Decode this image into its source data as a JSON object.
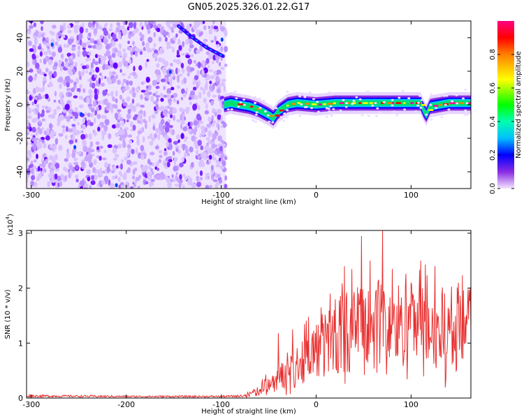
{
  "title": "GN05.2025.326.01.22.G17",
  "chart_data": [
    {
      "type": "heatmap",
      "xlabel": "Height of straight line (km)",
      "ylabel": "Frequency (Hz)",
      "xlim": [
        -305,
        163
      ],
      "ylim": [
        -50,
        50
      ],
      "xticks": [
        -300,
        -200,
        -100,
        0,
        100
      ],
      "yticks": [
        -40,
        -20,
        0,
        20,
        40
      ],
      "colorbar": {
        "label": "Normalized spectral amplitude",
        "range": [
          0,
          1
        ],
        "ticks": [
          "0.0",
          "0.2",
          "0.4",
          "0.6",
          "0.8"
        ],
        "colormap": [
          "#e6ccff",
          "#7b00ff",
          "#0000ff",
          "#00e5ff",
          "#00ff40",
          "#ffff00",
          "#ff8000",
          "#ff0000",
          "#ff00a0"
        ]
      },
      "noise_region": {
        "x_from": -305,
        "x_to": -95
      },
      "diagonal_trace": [
        [
          -145,
          47
        ],
        [
          -130,
          40
        ],
        [
          -115,
          34
        ],
        [
          -98,
          29
        ]
      ],
      "ridge": {
        "x": [
          -97,
          -90,
          -80,
          -70,
          -60,
          -50,
          -45,
          -40,
          -30,
          -20,
          0,
          20,
          40,
          60,
          80,
          100,
          110,
          113,
          116,
          120,
          140,
          163
        ],
        "freq": [
          0,
          1,
          0,
          -1,
          -3,
          -6,
          -8,
          -4,
          0,
          1,
          0,
          1,
          1,
          1,
          1,
          1,
          1,
          -3,
          -6,
          -1,
          1,
          1
        ]
      }
    },
    {
      "type": "line",
      "xlabel": "Height of straight line (km)",
      "ylabel": "SNR (10 * v/v)",
      "y_scale_label": "(x10",
      "y_scale_exp": "4",
      "xlim": [
        -305,
        163
      ],
      "ylim": [
        0,
        3.05
      ],
      "xticks": [
        -300,
        -200,
        -100,
        0,
        100
      ],
      "yticks": [
        0,
        1,
        2,
        3
      ],
      "color": "#e83030",
      "envelope": {
        "x": [
          -305,
          -200,
          -100,
          -75,
          -60,
          -45,
          -30,
          -15,
          0,
          15,
          30,
          50,
          70,
          100,
          130,
          163
        ],
        "y": [
          0.04,
          0.03,
          0.03,
          0.04,
          0.15,
          0.35,
          0.5,
          0.75,
          0.95,
          1.15,
          1.3,
          1.4,
          1.45,
          1.4,
          1.35,
          1.35
        ]
      },
      "spikes": [
        [
          -40,
          1.18
        ],
        [
          -25,
          1.25
        ],
        [
          -12,
          1.35
        ],
        [
          5,
          1.65
        ],
        [
          15,
          1.9
        ],
        [
          30,
          2.4
        ],
        [
          48,
          2.95
        ],
        [
          57,
          2.5
        ],
        [
          70,
          3.05
        ],
        [
          80,
          2.35
        ],
        [
          100,
          2.1
        ],
        [
          110,
          2.5
        ],
        [
          125,
          2.4
        ],
        [
          150,
          2.1
        ]
      ]
    }
  ]
}
